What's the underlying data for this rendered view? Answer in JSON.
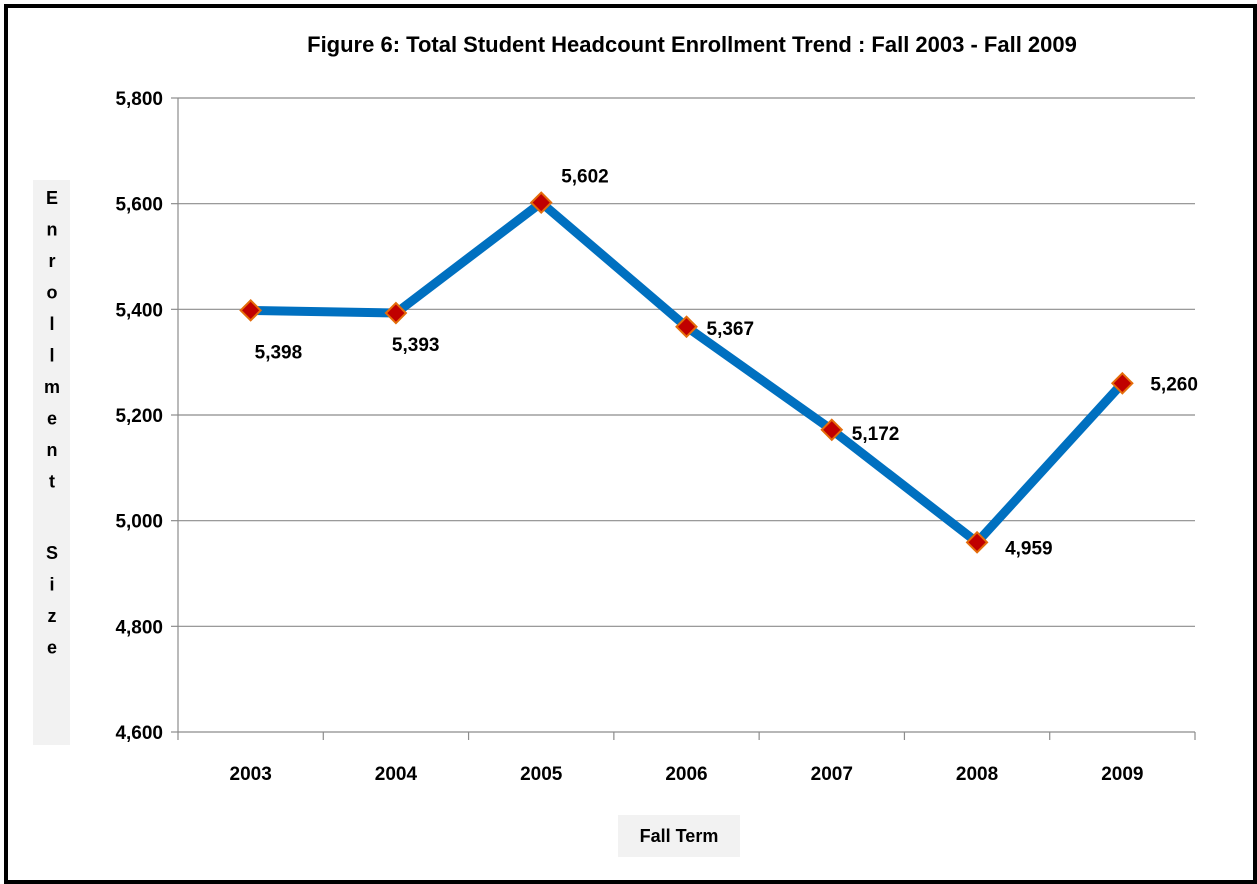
{
  "chart_data": {
    "type": "line",
    "title": "Figure 6:   Total Student  Headcount Enrollment Trend : Fall 2003 - Fall 2009",
    "xlabel": "Fall Term",
    "ylabel": "Enrollment Size",
    "categories": [
      "2003",
      "2004",
      "2005",
      "2006",
      "2007",
      "2008",
      "2009"
    ],
    "values": [
      5398,
      5393,
      5602,
      5367,
      5172,
      4959,
      5260
    ],
    "data_labels": [
      "5,398",
      "5,393",
      "5,602",
      "5,367",
      "5,172",
      "4,959",
      "5,260"
    ],
    "ylim": [
      4600,
      5800
    ],
    "yticks": [
      4600,
      4800,
      5000,
      5200,
      5400,
      5600,
      5800
    ],
    "ytick_labels": [
      "4,600",
      "4,800",
      "5,000",
      "5,200",
      "5,400",
      "5,600",
      "5,800"
    ],
    "grid": true,
    "legend": "none",
    "colors": {
      "line": "#0070C0",
      "marker_fill": "#C00000",
      "marker_edge": "#E46C0A",
      "label_box": "#F2F2F2"
    }
  }
}
